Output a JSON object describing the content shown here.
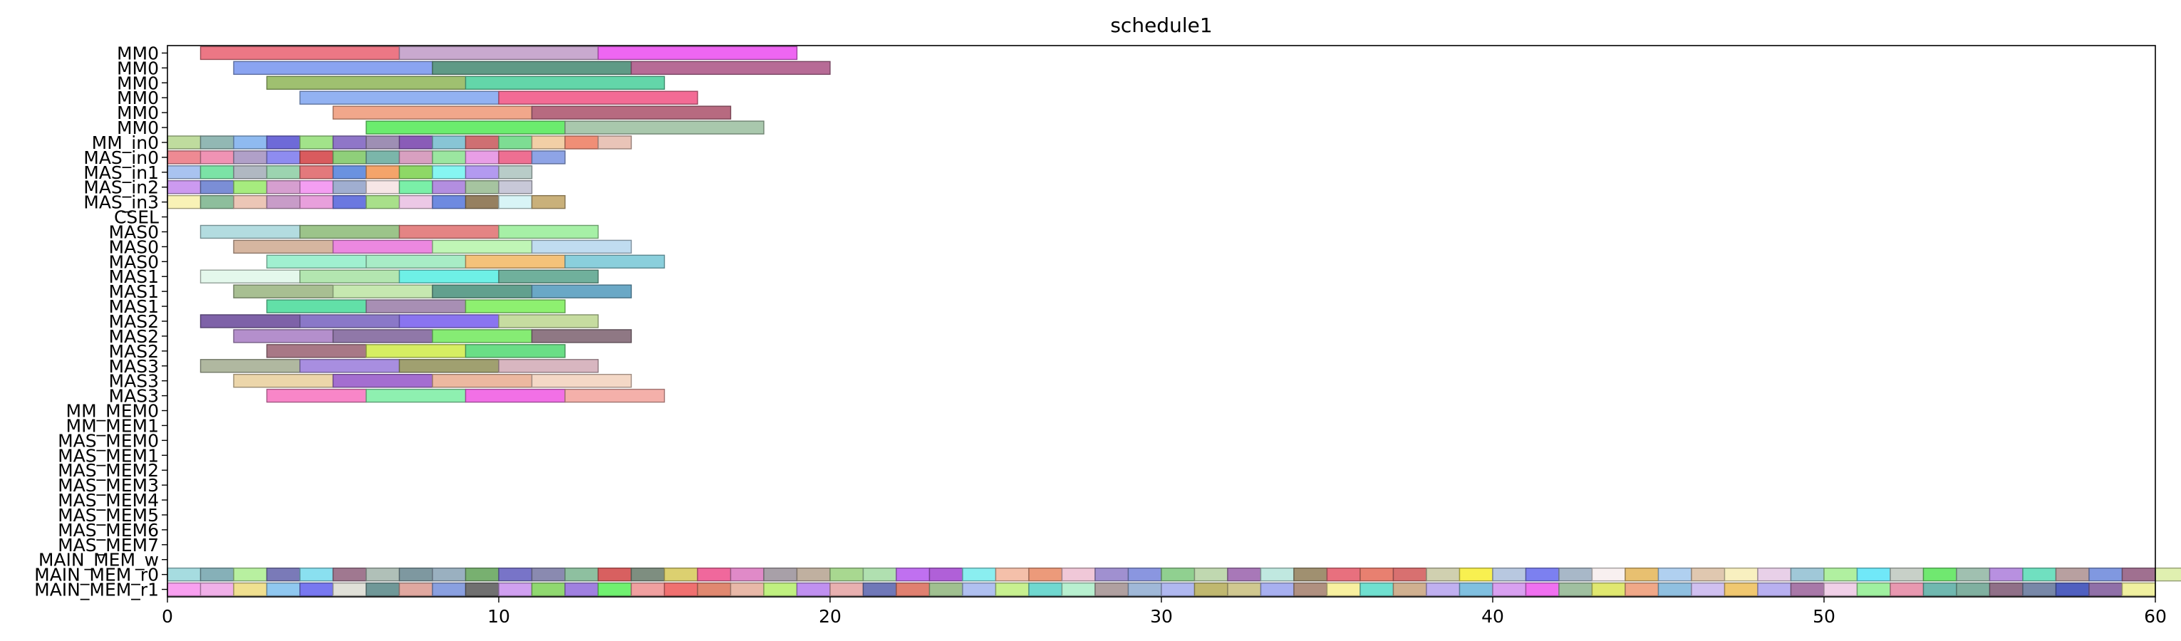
{
  "chart_data": {
    "type": "gantt",
    "title": "schedule1",
    "xlabel": "",
    "ylabel": "",
    "xlim": [
      0,
      60
    ],
    "x_ticks": [
      0,
      10,
      20,
      30,
      40,
      50,
      60
    ],
    "rows": [
      "MM0",
      "MM0",
      "MM0",
      "MM0",
      "MM0",
      "MM0",
      "MM_in0",
      "MAS_in0",
      "MAS_in1",
      "MAS_in2",
      "MAS_in3",
      "CSEL",
      "MAS0",
      "MAS0",
      "MAS0",
      "MAS1",
      "MAS1",
      "MAS1",
      "MAS2",
      "MAS2",
      "MAS2",
      "MAS3",
      "MAS3",
      "MAS3",
      "MM_MEM0",
      "MM_MEM1",
      "MAS_MEM0",
      "MAS_MEM1",
      "MAS_MEM2",
      "MAS_MEM3",
      "MAS_MEM4",
      "MAS_MEM5",
      "MAS_MEM6",
      "MAS_MEM7",
      "MAIN_MEM_w",
      "MAIN_MEM_r0",
      "MAIN_MEM_r1"
    ],
    "tasks": [
      {
        "row": 0,
        "start": 1,
        "end": 7,
        "color": "#ec7785"
      },
      {
        "row": 0,
        "start": 7,
        "end": 13,
        "color": "#c9a9cf"
      },
      {
        "row": 0,
        "start": 13,
        "end": 19,
        "color": "#ee66f2"
      },
      {
        "row": 1,
        "start": 2,
        "end": 8,
        "color": "#8aa4f1"
      },
      {
        "row": 1,
        "start": 8,
        "end": 14,
        "color": "#5f9a86"
      },
      {
        "row": 1,
        "start": 14,
        "end": 20,
        "color": "#b76b96"
      },
      {
        "row": 2,
        "start": 3,
        "end": 9,
        "color": "#9fc070"
      },
      {
        "row": 2,
        "start": 9,
        "end": 15,
        "color": "#63d6a9"
      },
      {
        "row": 3,
        "start": 4,
        "end": 10,
        "color": "#92b2f2"
      },
      {
        "row": 3,
        "start": 10,
        "end": 16,
        "color": "#f36b95"
      },
      {
        "row": 4,
        "start": 5,
        "end": 11,
        "color": "#f1a78b"
      },
      {
        "row": 4,
        "start": 11,
        "end": 17,
        "color": "#b76a80"
      },
      {
        "row": 5,
        "start": 6,
        "end": 12,
        "color": "#6bec6e"
      },
      {
        "row": 5,
        "start": 12,
        "end": 18,
        "color": "#a9c8ad"
      },
      {
        "row": 6,
        "start": 0,
        "end": 1,
        "color": "#bfdc9e"
      },
      {
        "row": 6,
        "start": 1,
        "end": 2,
        "color": "#92b8b4"
      },
      {
        "row": 6,
        "start": 2,
        "end": 3,
        "color": "#8fbaf0"
      },
      {
        "row": 6,
        "start": 3,
        "end": 4,
        "color": "#6e6ad8"
      },
      {
        "row": 6,
        "start": 4,
        "end": 5,
        "color": "#a2e38a"
      },
      {
        "row": 6,
        "start": 5,
        "end": 6,
        "color": "#8f76c8"
      },
      {
        "row": 6,
        "start": 6,
        "end": 7,
        "color": "#9e8fb4"
      },
      {
        "row": 6,
        "start": 7,
        "end": 8,
        "color": "#8a5cb8"
      },
      {
        "row": 6,
        "start": 8,
        "end": 9,
        "color": "#88c5d5"
      },
      {
        "row": 6,
        "start": 9,
        "end": 10,
        "color": "#cf6f72"
      },
      {
        "row": 6,
        "start": 10,
        "end": 11,
        "color": "#7ddd93"
      },
      {
        "row": 6,
        "start": 11,
        "end": 12,
        "color": "#f2cfa6"
      },
      {
        "row": 6,
        "start": 12,
        "end": 13,
        "color": "#f08e76"
      },
      {
        "row": 6,
        "start": 13,
        "end": 14,
        "color": "#e9c4b8"
      },
      {
        "row": 7,
        "start": 0,
        "end": 1,
        "color": "#ee8a93"
      },
      {
        "row": 7,
        "start": 1,
        "end": 2,
        "color": "#f093b4"
      },
      {
        "row": 7,
        "start": 2,
        "end": 3,
        "color": "#b0a0c8"
      },
      {
        "row": 7,
        "start": 3,
        "end": 4,
        "color": "#8e8cf0"
      },
      {
        "row": 7,
        "start": 4,
        "end": 5,
        "color": "#d95b5e"
      },
      {
        "row": 7,
        "start": 5,
        "end": 6,
        "color": "#8fcf7a"
      },
      {
        "row": 7,
        "start": 6,
        "end": 7,
        "color": "#7bb6aa"
      },
      {
        "row": 7,
        "start": 7,
        "end": 8,
        "color": "#d8a0c0"
      },
      {
        "row": 7,
        "start": 8,
        "end": 9,
        "color": "#9be6a0"
      },
      {
        "row": 7,
        "start": 9,
        "end": 10,
        "color": "#e89ee6"
      },
      {
        "row": 7,
        "start": 10,
        "end": 11,
        "color": "#ee6f92"
      },
      {
        "row": 7,
        "start": 11,
        "end": 12,
        "color": "#8ea4e6"
      },
      {
        "row": 8,
        "start": 0,
        "end": 1,
        "color": "#a9c3f0"
      },
      {
        "row": 8,
        "start": 1,
        "end": 2,
        "color": "#7be3a6"
      },
      {
        "row": 8,
        "start": 2,
        "end": 3,
        "color": "#b0b8c2"
      },
      {
        "row": 8,
        "start": 3,
        "end": 4,
        "color": "#9cd4b0"
      },
      {
        "row": 8,
        "start": 4,
        "end": 5,
        "color": "#e3797c"
      },
      {
        "row": 8,
        "start": 5,
        "end": 6,
        "color": "#6a92e0"
      },
      {
        "row": 8,
        "start": 6,
        "end": 7,
        "color": "#f4a46a"
      },
      {
        "row": 8,
        "start": 7,
        "end": 8,
        "color": "#8ed866"
      },
      {
        "row": 8,
        "start": 8,
        "end": 9,
        "color": "#86f6f2"
      },
      {
        "row": 8,
        "start": 9,
        "end": 10,
        "color": "#b39af0"
      },
      {
        "row": 8,
        "start": 10,
        "end": 11,
        "color": "#b8ccc8"
      },
      {
        "row": 9,
        "start": 0,
        "end": 1,
        "color": "#cc9af0"
      },
      {
        "row": 9,
        "start": 1,
        "end": 2,
        "color": "#7b8ed6"
      },
      {
        "row": 9,
        "start": 2,
        "end": 3,
        "color": "#a6ec7e"
      },
      {
        "row": 9,
        "start": 3,
        "end": 4,
        "color": "#d69fd0"
      },
      {
        "row": 9,
        "start": 4,
        "end": 5,
        "color": "#f49ef2"
      },
      {
        "row": 9,
        "start": 5,
        "end": 6,
        "color": "#a0aed0"
      },
      {
        "row": 9,
        "start": 6,
        "end": 7,
        "color": "#f6e6e6"
      },
      {
        "row": 9,
        "start": 7,
        "end": 8,
        "color": "#7af0a8"
      },
      {
        "row": 9,
        "start": 8,
        "end": 9,
        "color": "#b38ee0"
      },
      {
        "row": 9,
        "start": 9,
        "end": 10,
        "color": "#a6c4a0"
      },
      {
        "row": 9,
        "start": 10,
        "end": 11,
        "color": "#c8c8d8"
      },
      {
        "row": 10,
        "start": 0,
        "end": 1,
        "color": "#f8f2b6"
      },
      {
        "row": 10,
        "start": 1,
        "end": 2,
        "color": "#8dbe9c"
      },
      {
        "row": 10,
        "start": 2,
        "end": 3,
        "color": "#ecc6b6"
      },
      {
        "row": 10,
        "start": 3,
        "end": 4,
        "color": "#c89cc8"
      },
      {
        "row": 10,
        "start": 4,
        "end": 5,
        "color": "#e8a0dc"
      },
      {
        "row": 10,
        "start": 5,
        "end": 6,
        "color": "#6b78e0"
      },
      {
        "row": 10,
        "start": 6,
        "end": 7,
        "color": "#a8e08a"
      },
      {
        "row": 10,
        "start": 7,
        "end": 8,
        "color": "#ecc8e6"
      },
      {
        "row": 10,
        "start": 8,
        "end": 9,
        "color": "#6e8ae0"
      },
      {
        "row": 10,
        "start": 9,
        "end": 10,
        "color": "#968060"
      },
      {
        "row": 10,
        "start": 10,
        "end": 11,
        "color": "#d8f4f6"
      },
      {
        "row": 10,
        "start": 11,
        "end": 12,
        "color": "#c9b07a"
      },
      {
        "row": 12,
        "start": 1,
        "end": 4,
        "color": "#b3dce0"
      },
      {
        "row": 12,
        "start": 4,
        "end": 7,
        "color": "#9cc48a"
      },
      {
        "row": 12,
        "start": 7,
        "end": 10,
        "color": "#e48484"
      },
      {
        "row": 12,
        "start": 10,
        "end": 13,
        "color": "#a6f0a6"
      },
      {
        "row": 13,
        "start": 2,
        "end": 5,
        "color": "#d6b6a0"
      },
      {
        "row": 13,
        "start": 5,
        "end": 8,
        "color": "#ec88e0"
      },
      {
        "row": 13,
        "start": 8,
        "end": 11,
        "color": "#c0f6b6"
      },
      {
        "row": 13,
        "start": 11,
        "end": 14,
        "color": "#c0dcf0"
      },
      {
        "row": 14,
        "start": 3,
        "end": 6,
        "color": "#a0f0d0"
      },
      {
        "row": 14,
        "start": 6,
        "end": 9,
        "color": "#a8ecc6"
      },
      {
        "row": 14,
        "start": 9,
        "end": 12,
        "color": "#f4c27a"
      },
      {
        "row": 14,
        "start": 12,
        "end": 15,
        "color": "#8acfdc"
      },
      {
        "row": 15,
        "start": 1,
        "end": 4,
        "color": "#e4f8ec"
      },
      {
        "row": 15,
        "start": 4,
        "end": 7,
        "color": "#b3e6b0"
      },
      {
        "row": 15,
        "start": 7,
        "end": 10,
        "color": "#6ef0e6"
      },
      {
        "row": 15,
        "start": 10,
        "end": 13,
        "color": "#70b09c"
      },
      {
        "row": 16,
        "start": 2,
        "end": 5,
        "color": "#a8bf92"
      },
      {
        "row": 16,
        "start": 5,
        "end": 8,
        "color": "#c6e8b0"
      },
      {
        "row": 16,
        "start": 8,
        "end": 11,
        "color": "#62a08e"
      },
      {
        "row": 16,
        "start": 11,
        "end": 14,
        "color": "#6aa8c6"
      },
      {
        "row": 17,
        "start": 3,
        "end": 6,
        "color": "#62e0a8"
      },
      {
        "row": 17,
        "start": 6,
        "end": 9,
        "color": "#a88fb4"
      },
      {
        "row": 17,
        "start": 9,
        "end": 12,
        "color": "#8ef070"
      },
      {
        "row": 18,
        "start": 1,
        "end": 4,
        "color": "#7e62a8"
      },
      {
        "row": 18,
        "start": 4,
        "end": 7,
        "color": "#8a78c8"
      },
      {
        "row": 18,
        "start": 7,
        "end": 10,
        "color": "#8a74f0"
      },
      {
        "row": 18,
        "start": 10,
        "end": 13,
        "color": "#c6dca0"
      },
      {
        "row": 19,
        "start": 2,
        "end": 5,
        "color": "#b48fcc"
      },
      {
        "row": 19,
        "start": 5,
        "end": 8,
        "color": "#9078a8"
      },
      {
        "row": 19,
        "start": 8,
        "end": 11,
        "color": "#86ec74"
      },
      {
        "row": 19,
        "start": 11,
        "end": 14,
        "color": "#8f7884"
      },
      {
        "row": 20,
        "start": 3,
        "end": 6,
        "color": "#a87886"
      },
      {
        "row": 20,
        "start": 6,
        "end": 9,
        "color": "#d6ee62"
      },
      {
        "row": 20,
        "start": 9,
        "end": 12,
        "color": "#6ade86"
      },
      {
        "row": 21,
        "start": 1,
        "end": 4,
        "color": "#b0b8a0"
      },
      {
        "row": 21,
        "start": 4,
        "end": 7,
        "color": "#a88ee0"
      },
      {
        "row": 21,
        "start": 7,
        "end": 10,
        "color": "#a0a070"
      },
      {
        "row": 21,
        "start": 10,
        "end": 13,
        "color": "#d8b6c0"
      },
      {
        "row": 22,
        "start": 2,
        "end": 5,
        "color": "#ecd6aa"
      },
      {
        "row": 22,
        "start": 5,
        "end": 8,
        "color": "#a46ed0"
      },
      {
        "row": 22,
        "start": 8,
        "end": 11,
        "color": "#ecb8a0"
      },
      {
        "row": 22,
        "start": 11,
        "end": 14,
        "color": "#f4d8c6"
      },
      {
        "row": 23,
        "start": 3,
        "end": 6,
        "color": "#f886c8"
      },
      {
        "row": 23,
        "start": 6,
        "end": 9,
        "color": "#8ef0b0"
      },
      {
        "row": 23,
        "start": 9,
        "end": 12,
        "color": "#f270e6"
      },
      {
        "row": 23,
        "start": 12,
        "end": 15,
        "color": "#f4b0aa"
      }
    ],
    "mem_r0_colors": [
      "#a6dce0",
      "#86b0b8",
      "#b8f0a0",
      "#7a7ab8",
      "#8ae0f0",
      "#a07890",
      "#b0c0b8",
      "#7e98a0",
      "#9ab0c0",
      "#78b070",
      "#7874c8",
      "#8a8ab0",
      "#8ec0a0",
      "#d86060",
      "#7e8e80",
      "#dcd070",
      "#f0689c",
      "#e08ac8",
      "#a8a0a8",
      "#c0b0a0",
      "#a8d890",
      "#b0e0b0",
      "#c070f0",
      "#b060d8",
      "#8aeef0",
      "#f4c0aa",
      "#ec9a7a",
      "#f0c8d8",
      "#a090d0",
      "#8a96e0",
      "#90d090",
      "#c0d8b0",
      "#a878b8",
      "#c0e8e0",
      "#a09070",
      "#e8707e",
      "#e88070",
      "#d87070",
      "#d0d0b0",
      "#f8f050",
      "#b8c8e0",
      "#7c80f0",
      "#a8b8c8",
      "#f8f0f0",
      "#e8c070",
      "#b0d0f0",
      "#e0c8b0",
      "#f8f0c0",
      "#e8d0e8",
      "#a0c8d8",
      "#b0f0a0",
      "#70e8f8",
      "#c8d0c8",
      "#70e870",
      "#a0c0b0",
      "#b890e0",
      "#70e0c0",
      "#b8a0a0",
      "#8098e0",
      "#a07090",
      "#e0f0b0"
    ],
    "mem_r1_colors": [
      "#f8a0f0",
      "#f0b0e8",
      "#f0e090",
      "#90c8f0",
      "#7878f0",
      "#e0e0d8",
      "#709898",
      "#e0a8a0",
      "#8aa0e0",
      "#707070",
      "#d0a0f0",
      "#90d870",
      "#a080e0",
      "#70f070",
      "#f0a0a0",
      "#f07070",
      "#e08870",
      "#e8b8a8",
      "#c0f080",
      "#c090f0",
      "#e8b0b0",
      "#7078b8",
      "#e08070",
      "#a0c090",
      "#b0c0f0",
      "#c8f090",
      "#70d8d0",
      "#b8f0d0",
      "#b0a0a0",
      "#a0b8d8",
      "#b0b8f0",
      "#c0b870",
      "#d0c890",
      "#a8b0f0",
      "#b09080",
      "#f8f0a0",
      "#70e0d0",
      "#d0b090",
      "#c0b0f0",
      "#80c0e0",
      "#d8a0f0",
      "#f070f0",
      "#a0c0a0",
      "#e0e870",
      "#f0a888",
      "#90c0e0",
      "#d0c0f0",
      "#f0c870",
      "#b8b0f0",
      "#a878a8",
      "#f0d0e8",
      "#a0f0a0",
      "#e898b0",
      "#70b8b0",
      "#80b0a0",
      "#907088",
      "#7888a8",
      "#5060c0",
      "#9070a8",
      "#f0f0a0"
    ]
  }
}
